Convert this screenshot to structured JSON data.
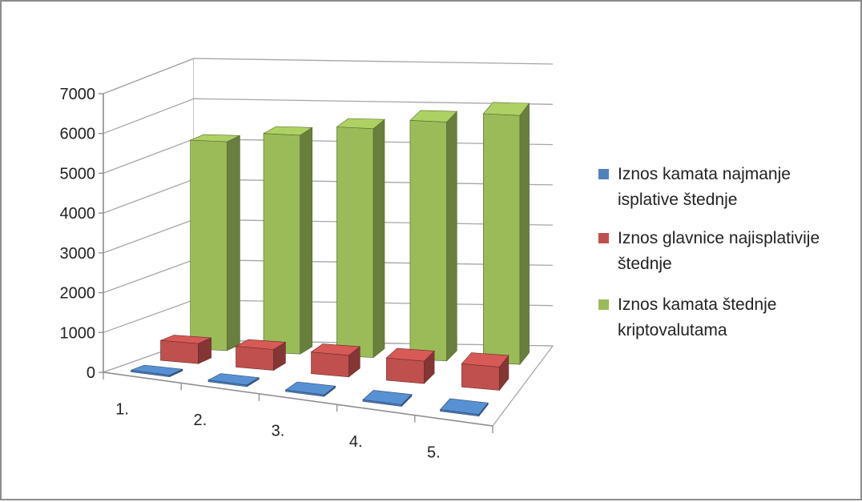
{
  "chart_data": {
    "type": "bar",
    "subtype": "3d-clustered-column",
    "title": "",
    "xlabel": "",
    "ylabel": "",
    "categories": [
      "1.",
      "2.",
      "3.",
      "4.",
      "5."
    ],
    "y_ticks": [
      "0",
      "1000",
      "2000",
      "3000",
      "4000",
      "5000",
      "6000",
      "7000"
    ],
    "ylim": [
      0,
      7000
    ],
    "grid": true,
    "legend_position": "right",
    "series": [
      {
        "name": "Iznos kamata najmanje isplative štednje",
        "values": [
          20,
          25,
          30,
          35,
          40
        ],
        "color": "#4f81bd"
      },
      {
        "name": "Iznos glavnice najisplativije štednje",
        "values": [
          500,
          520,
          540,
          560,
          580
        ],
        "color": "#c0504d"
      },
      {
        "name": "Iznos kamata štednje kriptovalutama",
        "values": [
          5200,
          5450,
          5700,
          5950,
          6200
        ],
        "color": "#9bbb59"
      }
    ]
  },
  "legend": {
    "entries": [
      {
        "lines": [
          "Iznos kamata najmanje",
          "isplative štednje"
        ]
      },
      {
        "lines": [
          "Iznos glavnice najisplativije",
          "štednje"
        ]
      },
      {
        "lines": [
          "Iznos kamata štednje",
          "kriptovalutama"
        ]
      }
    ]
  }
}
